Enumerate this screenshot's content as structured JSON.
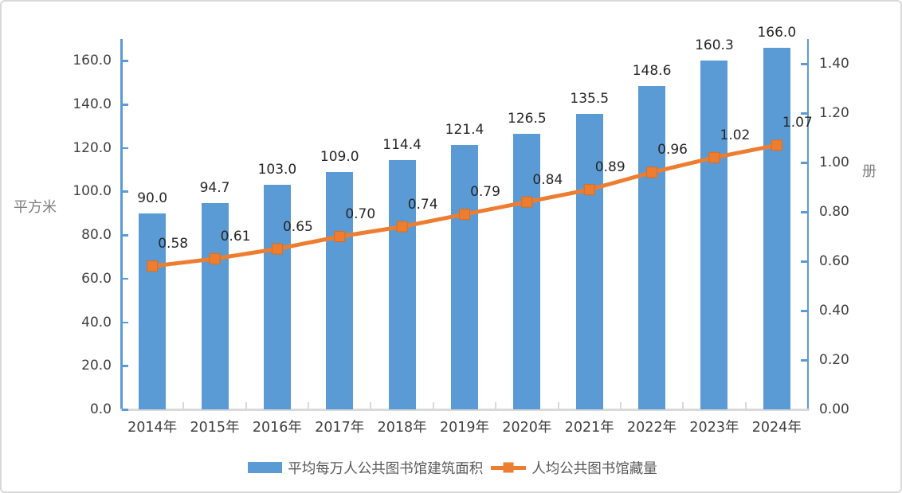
{
  "chart_data": {
    "type": "bar+line combo",
    "categories": [
      "2014年",
      "2015年",
      "2016年",
      "2017年",
      "2018年",
      "2019年",
      "2020年",
      "2021年",
      "2022年",
      "2023年",
      "2024年"
    ],
    "series": [
      {
        "name": "平均每万人公共图书馆建筑面积",
        "type": "bar",
        "axis": "left",
        "color": "#5B9BD5",
        "values": [
          90.0,
          94.7,
          103.0,
          109.0,
          114.4,
          121.4,
          126.5,
          135.5,
          148.6,
          160.3,
          166.0
        ],
        "labels": [
          "90.0",
          "94.7",
          "103.0",
          "109.0",
          "114.4",
          "121.4",
          "126.5",
          "135.5",
          "148.6",
          "160.3",
          "166.0"
        ]
      },
      {
        "name": "人均公共图书馆藏量",
        "type": "line",
        "axis": "right",
        "color": "#ED7D31",
        "marker": "square",
        "values": [
          0.58,
          0.61,
          0.65,
          0.7,
          0.74,
          0.79,
          0.84,
          0.89,
          0.96,
          1.02,
          1.07
        ],
        "labels": [
          "0.58",
          "0.61",
          "0.65",
          "0.70",
          "0.74",
          "0.79",
          "0.84",
          "0.89",
          "0.96",
          "1.02",
          "1.07"
        ]
      }
    ],
    "left_axis": {
      "title": "平方米",
      "min": 0,
      "max": 170,
      "tick_values": [
        0,
        20,
        40,
        60,
        80,
        100,
        120,
        140,
        160
      ],
      "tick_labels": [
        "0.0",
        "20.0",
        "40.0",
        "60.0",
        "80.0",
        "100.0",
        "120.0",
        "140.0",
        "160.0"
      ],
      "color": "#5B9BD5"
    },
    "right_axis": {
      "title": "册",
      "min": 0,
      "max": 1.5,
      "tick_values": [
        0,
        0.2,
        0.4,
        0.6,
        0.8,
        1.0,
        1.2,
        1.4
      ],
      "tick_labels": [
        "0.00",
        "0.20",
        "0.40",
        "0.60",
        "0.80",
        "1.00",
        "1.20",
        "1.40"
      ],
      "color": "#5B9BD5"
    },
    "x_axis_color": "#D9D9D9",
    "grid": false,
    "legend_position": "bottom",
    "legend": [
      {
        "label": "平均每万人公共图书馆建筑面积",
        "color": "#5B9BD5",
        "marker": "rect"
      },
      {
        "label": "人均公共图书馆藏量",
        "color": "#ED7D31",
        "marker": "line-square"
      }
    ]
  }
}
